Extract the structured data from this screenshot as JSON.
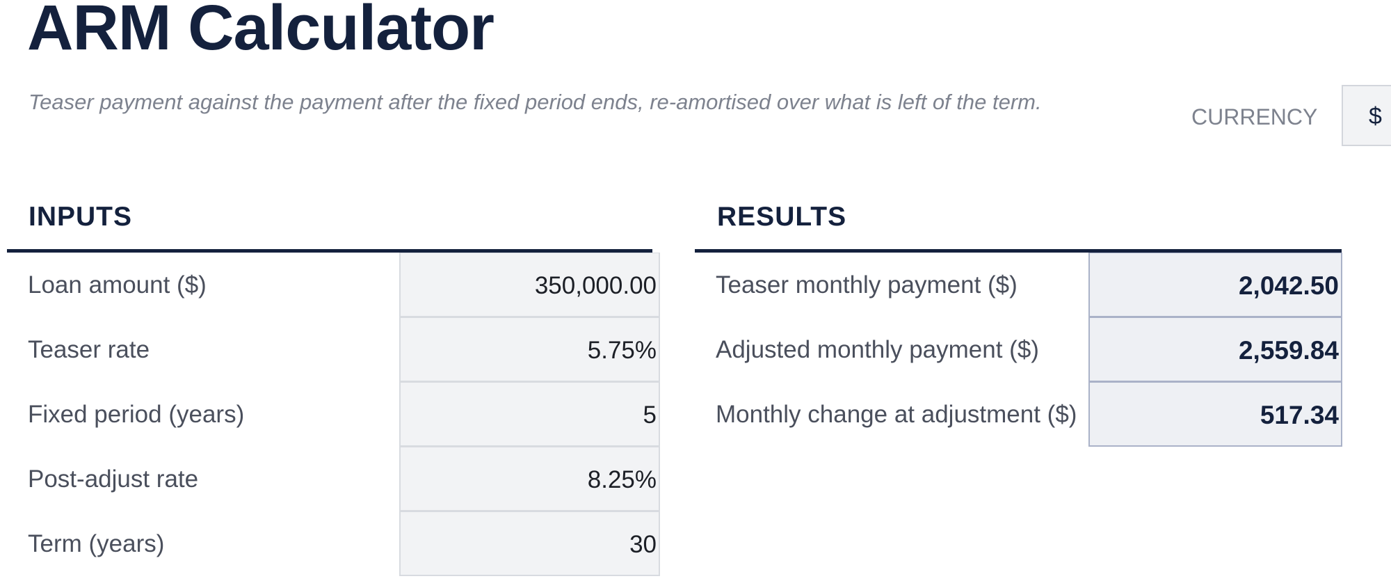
{
  "header": {
    "title": "ARM Calculator",
    "subtitle": "Teaser payment against the payment after the fixed period ends, re-amortised over what is left of the term.",
    "currency_label": "CURRENCY",
    "currency": "$"
  },
  "inputs": {
    "title": "INPUTS",
    "rows": [
      [
        "Loan amount ($)",
        "350,000.00"
      ],
      [
        "Teaser rate",
        "5.75%"
      ],
      [
        "Fixed period (years)",
        "5"
      ],
      [
        "Post-adjust rate",
        "8.25%"
      ],
      [
        "Term (years)",
        "30"
      ]
    ]
  },
  "results": {
    "title": "RESULTS",
    "rows": [
      [
        "Teaser monthly payment ($)",
        "2,042.50"
      ],
      [
        "Adjusted monthly payment ($)",
        "2,559.84"
      ],
      [
        "Monthly change at adjustment ($)",
        "517.34"
      ]
    ]
  }
}
